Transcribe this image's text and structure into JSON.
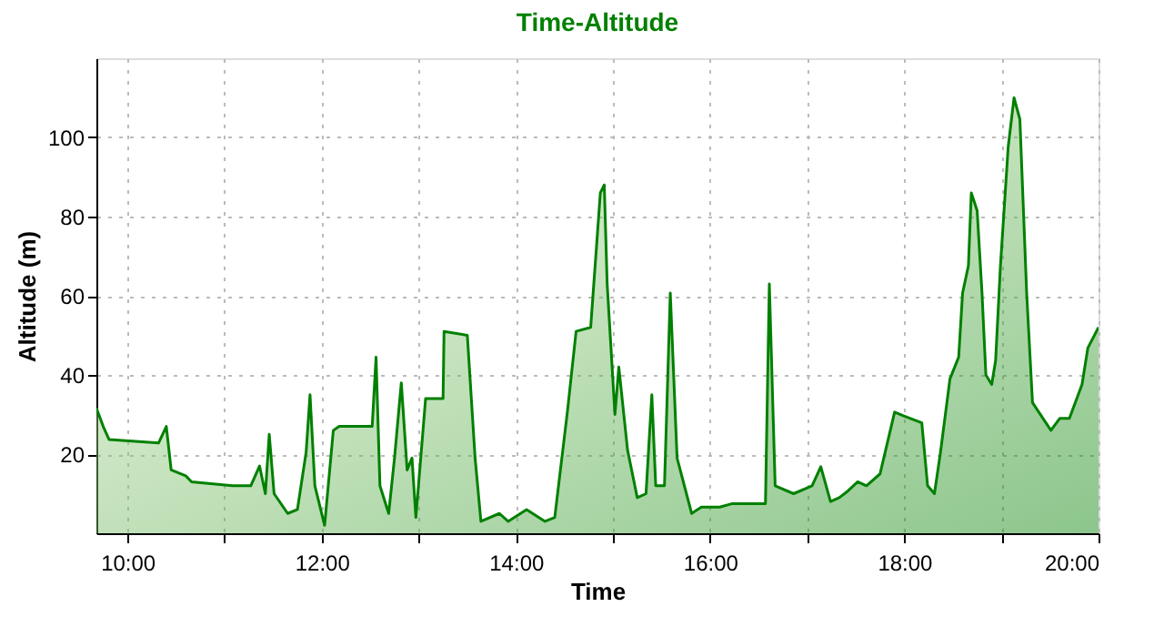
{
  "chart_data": {
    "type": "area",
    "title": "Time-Altitude",
    "xlabel": "Time",
    "ylabel": "Altitude (m)",
    "xlim": [
      9.68,
      20
    ],
    "xticks": [
      {
        "value": 10,
        "label": "10:00"
      },
      {
        "value": 11,
        "label": null
      },
      {
        "value": 12,
        "label": "12:00"
      },
      {
        "value": 13,
        "label": null
      },
      {
        "value": 14,
        "label": "14:00"
      },
      {
        "value": 15,
        "label": null
      },
      {
        "value": 16,
        "label": "16:00"
      },
      {
        "value": 17,
        "label": null
      },
      {
        "value": 18,
        "label": "18:00"
      },
      {
        "value": 19,
        "label": null
      },
      {
        "value": 20,
        "label": "20:00"
      }
    ],
    "ylim": [
      0,
      120
    ],
    "yticks": [
      20,
      40,
      60,
      80,
      100
    ],
    "grid": true,
    "line_style": "solid",
    "marker": "none",
    "series": [
      {
        "color": "#008000",
        "x": [
          9.68,
          9.75,
          9.81,
          10.32,
          10.4,
          10.45,
          10.6,
          10.66,
          11.08,
          11.27,
          11.36,
          11.42,
          11.46,
          11.51,
          11.65,
          11.75,
          11.84,
          11.88,
          11.93,
          12.03,
          12.12,
          12.18,
          12.52,
          12.56,
          12.6,
          12.69,
          12.75,
          12.82,
          12.88,
          12.93,
          12.97,
          13.07,
          13.25,
          13.26,
          13.5,
          13.58,
          13.64,
          13.83,
          13.92,
          14.11,
          14.3,
          14.4,
          14.53,
          14.62,
          14.77,
          14.87,
          14.91,
          14.94,
          15.02,
          15.06,
          15.15,
          15.25,
          15.34,
          15.4,
          15.44,
          15.53,
          15.59,
          15.66,
          15.81,
          15.91,
          16.1,
          16.23,
          16.57,
          16.61,
          16.67,
          16.86,
          17.05,
          17.14,
          17.24,
          17.33,
          17.42,
          17.52,
          17.61,
          17.75,
          17.9,
          17.99,
          18.18,
          18.24,
          18.31,
          18.37,
          18.47,
          18.56,
          18.6,
          18.66,
          18.69,
          18.75,
          18.8,
          18.84,
          18.9,
          18.94,
          18.99,
          19.07,
          19.13,
          19.19,
          19.26,
          19.32,
          19.41,
          19.51,
          19.6,
          19.7,
          19.83,
          19.89,
          20.0
        ],
        "values": [
          31.6,
          27,
          23.7,
          22.8,
          27,
          16,
          14.5,
          13,
          12,
          12,
          17,
          10,
          25,
          10,
          5,
          6,
          20.5,
          35,
          12,
          2,
          26,
          27,
          27,
          44.5,
          12,
          5,
          19,
          38,
          16,
          19,
          4,
          34,
          34,
          51,
          50,
          19,
          3,
          5,
          3,
          6,
          3,
          4,
          30.6,
          51,
          52,
          86,
          88,
          63,
          30,
          42,
          21,
          9,
          10,
          35,
          12,
          12,
          60.7,
          19,
          5,
          6.6,
          6.6,
          7.5,
          7.5,
          63,
          12,
          10,
          12,
          16.8,
          8,
          9,
          10.7,
          13,
          12,
          15,
          30.6,
          29.7,
          27.9,
          12,
          10,
          20,
          39,
          44.5,
          60.7,
          67.6,
          86,
          81.5,
          60.7,
          40,
          37.6,
          43.6,
          67.6,
          97.7,
          110,
          104.6,
          60.7,
          33,
          29.7,
          26,
          29,
          29,
          37.6,
          46.8,
          52
        ]
      }
    ]
  }
}
